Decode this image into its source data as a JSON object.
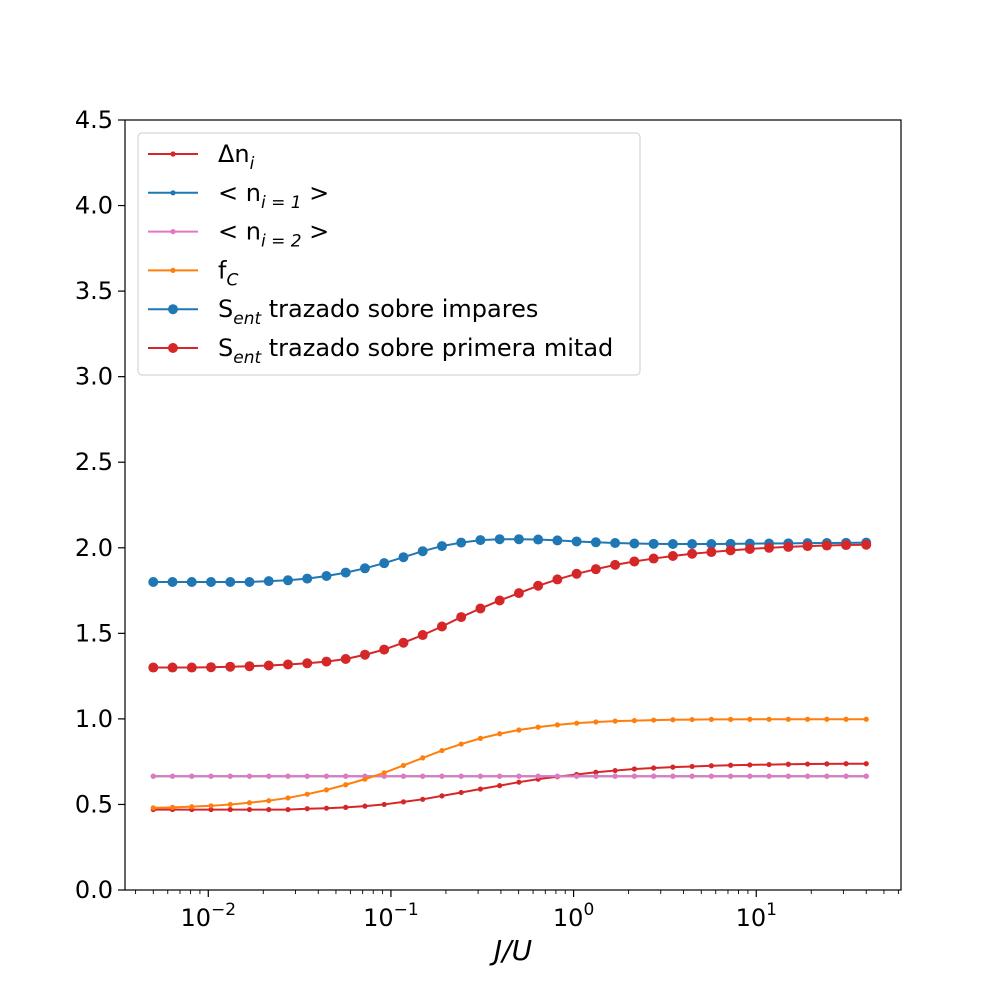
{
  "chart_data": {
    "type": "line",
    "title": "",
    "xlabel": "J/U",
    "ylabel": "",
    "xscale": "log",
    "xlim": [
      0.0035,
      62
    ],
    "ylim": [
      0,
      4.5
    ],
    "xticks": [
      {
        "value": 0.01,
        "base": "10",
        "exp": "−2"
      },
      {
        "value": 0.1,
        "base": "10",
        "exp": "−1"
      },
      {
        "value": 1,
        "base": "10",
        "exp": "0"
      },
      {
        "value": 10,
        "base": "10",
        "exp": "1"
      }
    ],
    "yticks": [
      {
        "value": 0.0,
        "label": "0.0"
      },
      {
        "value": 0.5,
        "label": "0.5"
      },
      {
        "value": 1.0,
        "label": "1.0"
      },
      {
        "value": 1.5,
        "label": "1.5"
      },
      {
        "value": 2.0,
        "label": "2.0"
      },
      {
        "value": 2.5,
        "label": "2.5"
      },
      {
        "value": 3.0,
        "label": "3.0"
      },
      {
        "value": 3.5,
        "label": "3.5"
      },
      {
        "value": 4.0,
        "label": "4.0"
      },
      {
        "value": 4.5,
        "label": "4.5"
      }
    ],
    "grid": false,
    "legend_position": "top-left",
    "x": [
      0.005,
      0.00637,
      0.00812,
      0.01035,
      0.01319,
      0.01681,
      0.02143,
      0.02731,
      0.03481,
      0.04436,
      0.05654,
      0.07206,
      0.09185,
      0.1171,
      0.1492,
      0.1902,
      0.2424,
      0.3089,
      0.3937,
      0.5018,
      0.6396,
      0.8152,
      1.039,
      1.324,
      1.688,
      2.151,
      2.742,
      3.495,
      4.454,
      5.677,
      7.236,
      9.222,
      11.75,
      14.98,
      19.09,
      24.34,
      31.02,
      40.0
    ],
    "series": [
      {
        "name": "Δn",
        "name_sub": "i",
        "color": "#d62728",
        "marker": "small",
        "values": [
          0.47,
          0.47,
          0.47,
          0.47,
          0.47,
          0.47,
          0.47,
          0.47,
          0.475,
          0.478,
          0.483,
          0.49,
          0.5,
          0.515,
          0.53,
          0.55,
          0.57,
          0.59,
          0.61,
          0.63,
          0.648,
          0.662,
          0.675,
          0.688,
          0.698,
          0.707,
          0.713,
          0.718,
          0.722,
          0.726,
          0.729,
          0.731,
          0.733,
          0.735,
          0.736,
          0.737,
          0.738,
          0.738
        ]
      },
      {
        "name": "< n",
        "name_sub": "i = 1",
        "name_end": " >",
        "color": "#1f77b4",
        "marker": "small",
        "values": [
          0.665,
          0.665,
          0.665,
          0.665,
          0.665,
          0.665,
          0.665,
          0.665,
          0.665,
          0.665,
          0.665,
          0.665,
          0.665,
          0.665,
          0.665,
          0.665,
          0.665,
          0.665,
          0.665,
          0.665,
          0.665,
          0.665,
          0.665,
          0.665,
          0.665,
          0.665,
          0.665,
          0.665,
          0.665,
          0.665,
          0.665,
          0.665,
          0.665,
          0.665,
          0.665,
          0.665,
          0.665,
          0.665
        ]
      },
      {
        "name": "< n",
        "name_sub": "i = 2",
        "name_end": " >",
        "color": "#e377c2",
        "marker": "small",
        "values": [
          0.665,
          0.665,
          0.665,
          0.665,
          0.665,
          0.665,
          0.665,
          0.665,
          0.665,
          0.665,
          0.665,
          0.665,
          0.665,
          0.665,
          0.665,
          0.665,
          0.665,
          0.665,
          0.665,
          0.665,
          0.665,
          0.665,
          0.665,
          0.665,
          0.665,
          0.665,
          0.665,
          0.665,
          0.665,
          0.665,
          0.665,
          0.665,
          0.665,
          0.665,
          0.665,
          0.665,
          0.665,
          0.665
        ]
      },
      {
        "name": "f",
        "name_sub": "C",
        "color": "#ff7f0e",
        "marker": "small",
        "values": [
          0.48,
          0.483,
          0.487,
          0.492,
          0.5,
          0.51,
          0.522,
          0.538,
          0.56,
          0.585,
          0.615,
          0.648,
          0.685,
          0.728,
          0.772,
          0.815,
          0.853,
          0.886,
          0.913,
          0.935,
          0.952,
          0.965,
          0.975,
          0.982,
          0.987,
          0.99,
          0.993,
          0.995,
          0.996,
          0.997,
          0.997,
          0.998,
          0.998,
          0.998,
          0.998,
          0.998,
          0.998,
          0.998
        ]
      },
      {
        "name": "S",
        "name_sub": "ent",
        "name_end": " trazado sobre impares",
        "color": "#1f77b4",
        "marker": "large",
        "values": [
          1.8,
          1.8,
          1.8,
          1.8,
          1.8,
          1.8,
          1.805,
          1.81,
          1.82,
          1.835,
          1.855,
          1.88,
          1.91,
          1.945,
          1.98,
          2.01,
          2.03,
          2.045,
          2.05,
          2.05,
          2.048,
          2.043,
          2.037,
          2.032,
          2.028,
          2.025,
          2.023,
          2.022,
          2.022,
          2.022,
          2.023,
          2.024,
          2.025,
          2.026,
          2.027,
          2.028,
          2.029,
          2.03
        ]
      },
      {
        "name": "S",
        "name_sub": "ent",
        "name_end": " trazado sobre primera mitad",
        "color": "#d62728",
        "marker": "large",
        "values": [
          1.3,
          1.3,
          1.3,
          1.302,
          1.305,
          1.308,
          1.312,
          1.318,
          1.325,
          1.335,
          1.35,
          1.375,
          1.405,
          1.445,
          1.49,
          1.54,
          1.595,
          1.645,
          1.692,
          1.735,
          1.778,
          1.815,
          1.848,
          1.875,
          1.9,
          1.92,
          1.937,
          1.952,
          1.965,
          1.975,
          1.985,
          1.993,
          2.0,
          2.005,
          2.01,
          2.013,
          2.016,
          2.018
        ]
      }
    ]
  }
}
